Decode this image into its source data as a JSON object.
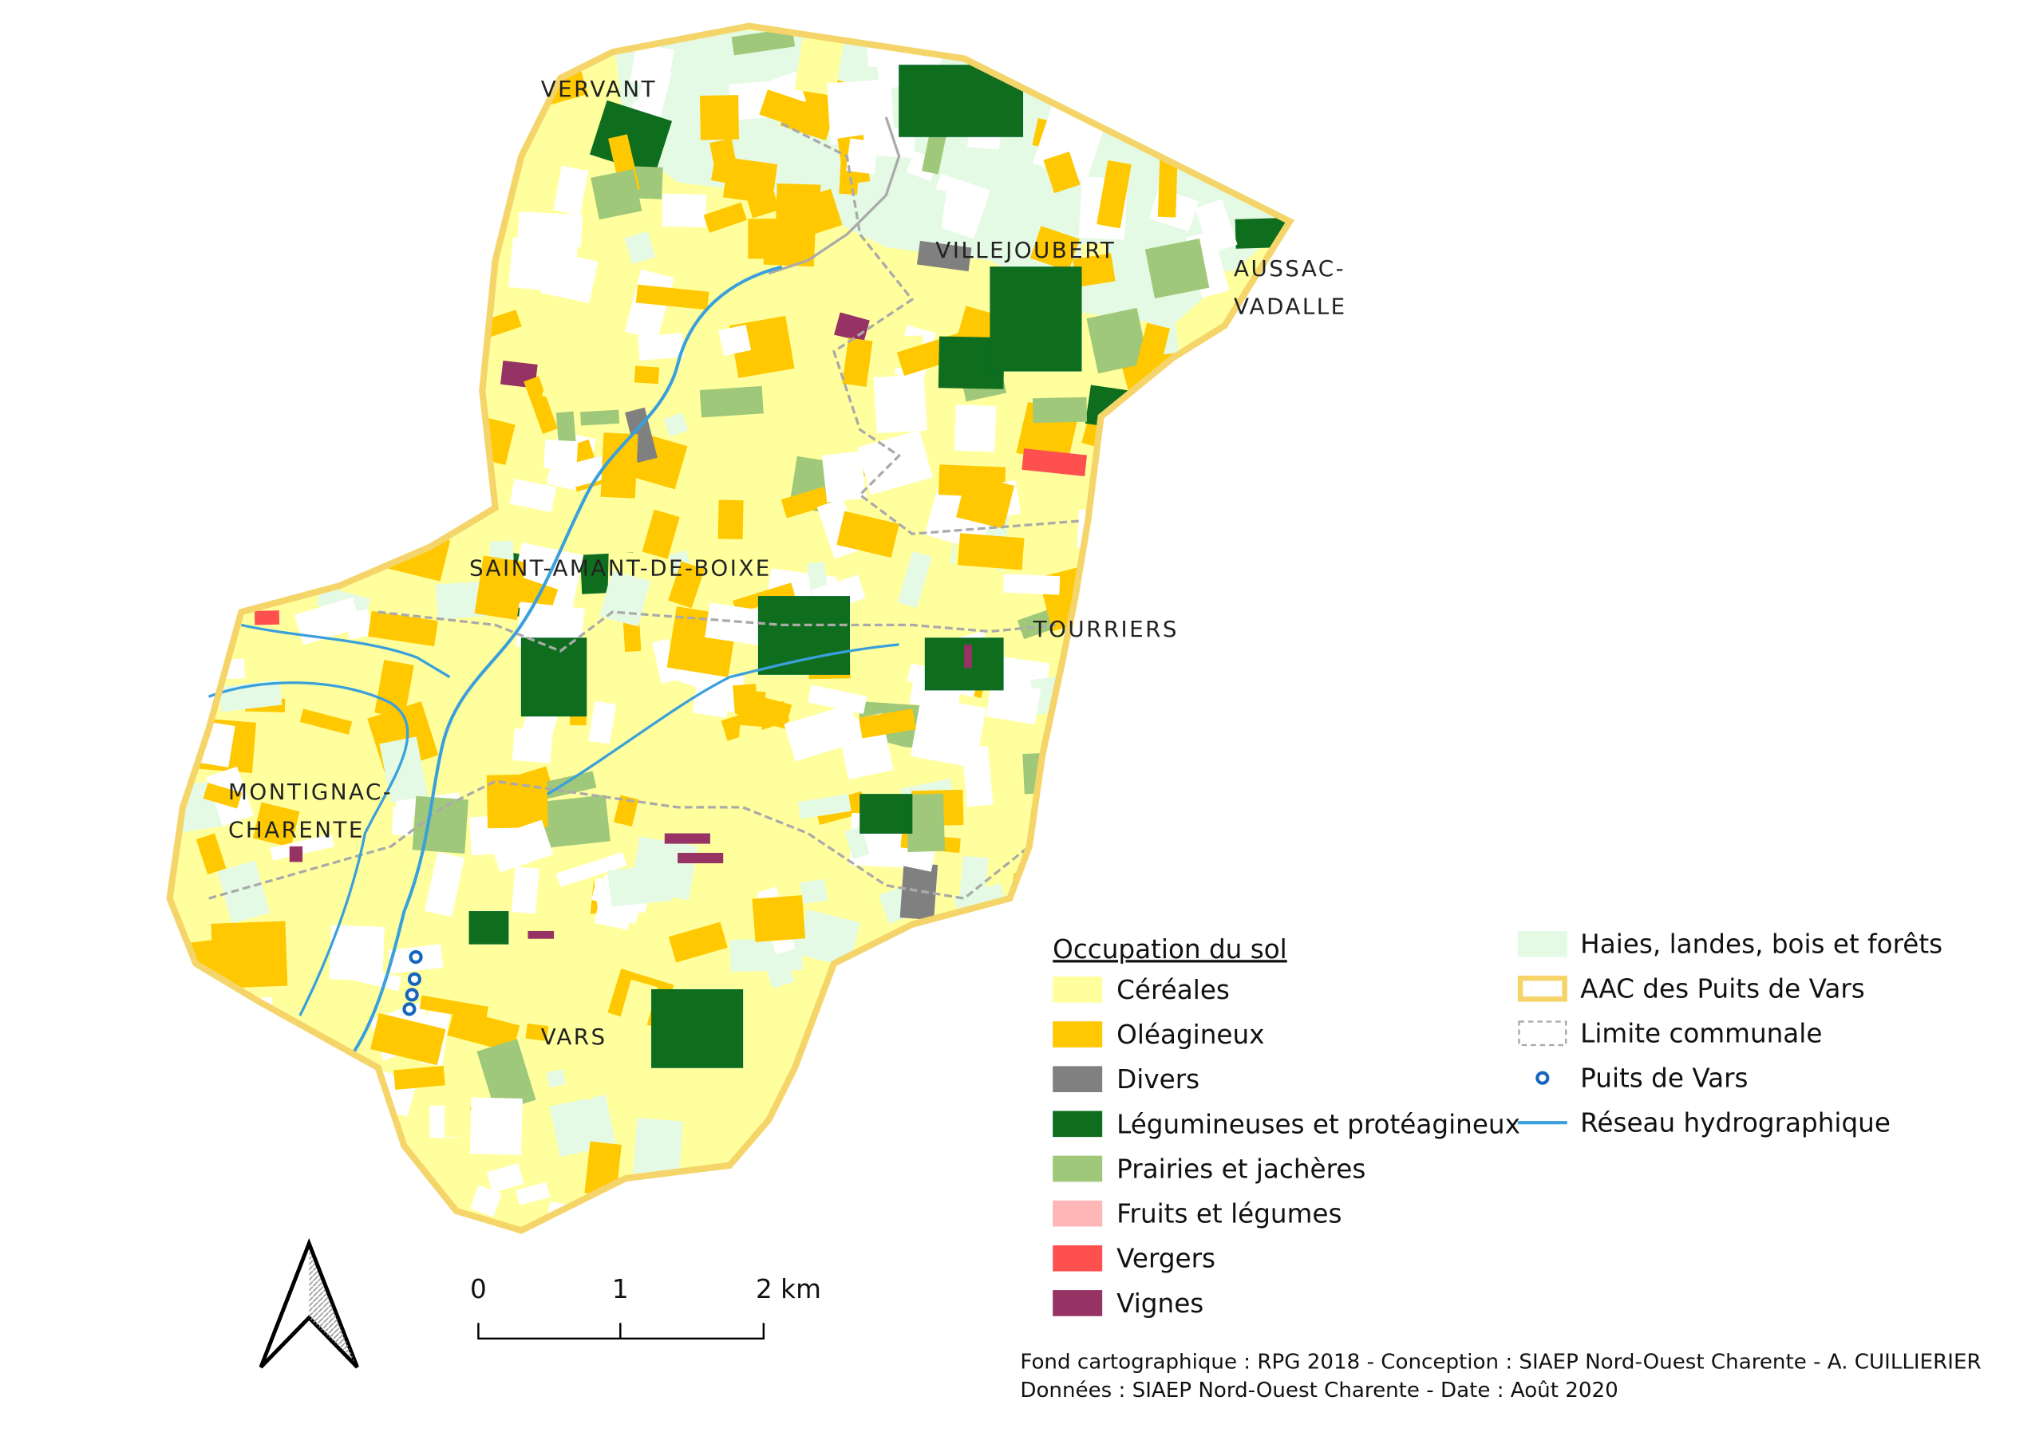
{
  "places": [
    {
      "lines": [
        "VERVANT"
      ]
    },
    {
      "lines": [
        "VILLEJOUBERT"
      ]
    },
    {
      "lines": [
        "AUSSAC-",
        "VADALLE"
      ]
    },
    {
      "lines": [
        "SAINT-AMANT-DE-BOIXE"
      ]
    },
    {
      "lines": [
        "TOURRIERS"
      ]
    },
    {
      "lines": [
        "MONTIGNAC-",
        "CHARENTE"
      ]
    },
    {
      "lines": [
        "VARS"
      ]
    }
  ],
  "legend": {
    "title": "Occupation du sol",
    "land_use": [
      {
        "label": "Céréales",
        "color": "#ffff9e"
      },
      {
        "label": "Oléagineux",
        "color": "#ffc800"
      },
      {
        "label": "Divers",
        "color": "#808080"
      },
      {
        "label": "Légumineuses et protéagineux",
        "color": "#0f6e1e"
      },
      {
        "label": "Prairies et jachères",
        "color": "#a0c87a"
      },
      {
        "label": "Fruits et légumes",
        "color": "#ffb6b6"
      },
      {
        "label": "Vergers",
        "color": "#ff5050"
      },
      {
        "label": "Vignes",
        "color": "#963264"
      }
    ],
    "features": [
      {
        "label": "Haies, landes, bois et forêts",
        "kind": "fill",
        "color": "#e4fae4"
      },
      {
        "label": "AAC des Puits de Vars",
        "kind": "outline",
        "color": "#f5d569"
      },
      {
        "label": "Limite communale",
        "kind": "dashed",
        "color": "#aaaaaa"
      },
      {
        "label": "Puits de Vars",
        "kind": "point",
        "color": "#1565c0"
      },
      {
        "label": "Réseau hydrographique",
        "kind": "line",
        "color": "#3aa0dc"
      }
    ]
  },
  "scale_bar": {
    "labels": [
      "0",
      "1",
      "2 km"
    ]
  },
  "credits": [
    "Fond cartographique : RPG 2018 - Conception : SIAEP Nord-Ouest Charente - A. CUILLIERIER",
    "Données : SIAEP Nord-Ouest Charente - Date : Août 2020"
  ]
}
